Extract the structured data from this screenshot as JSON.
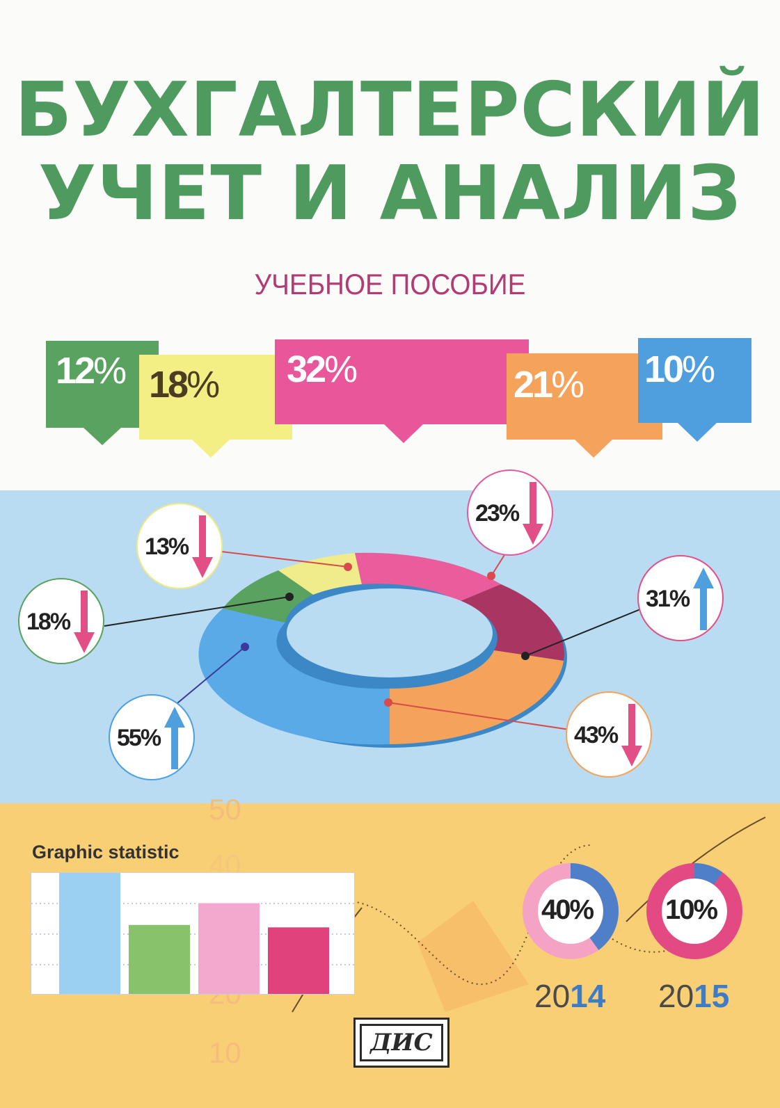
{
  "cover": {
    "title_line1": "БУХГАЛТЕРСКИЙ",
    "title_line2": "УЧЕТ И АНАЛИЗ",
    "subtitle": "УЧЕБНОЕ ПОСОБИЕ",
    "colors": {
      "title": "#4f9a5e",
      "subtitle": "#b23b74",
      "green": "#5aa25f",
      "yellow": "#f4ef84",
      "pink": "#e9569a",
      "orange": "#f5a25a",
      "blue": "#4f9fde",
      "maroon": "#a83562"
    }
  },
  "flags": [
    {
      "num": "12",
      "pct": "%",
      "color": "#5aa25f",
      "text_color": "#ffffff"
    },
    {
      "num": "18",
      "pct": "%",
      "color": "#f4ef84",
      "text_color": "#4b3c22"
    },
    {
      "num": "32",
      "pct": "%",
      "color": "#e9569a",
      "text_color": "#ffffff"
    },
    {
      "num": "21",
      "pct": "%",
      "color": "#f5a25a",
      "text_color": "#ffffff"
    },
    {
      "num": "10",
      "pct": "%",
      "color": "#4f9fde",
      "text_color": "#ffffff"
    }
  ],
  "donut": {
    "callouts": [
      {
        "label": "13%",
        "trend": "down",
        "ring_color": "#f0ea86",
        "arrow_color": "#e24f86"
      },
      {
        "label": "18%",
        "trend": "down",
        "ring_color": "#5aa25f",
        "arrow_color": "#e24f86"
      },
      {
        "label": "55%",
        "trend": "up",
        "ring_color": "#4f9fde",
        "arrow_color": "#4f9fde"
      },
      {
        "label": "23%",
        "trend": "down",
        "ring_color": "#e9569a",
        "arrow_color": "#e24f86"
      },
      {
        "label": "31%",
        "trend": "up",
        "ring_color": "#e24f86",
        "arrow_color": "#4f9fde"
      },
      {
        "label": "43%",
        "trend": "down",
        "ring_color": "#f5a25a",
        "arrow_color": "#e24f86"
      }
    ]
  },
  "statistic": {
    "heading": "Graphic statistic",
    "bars": [
      {
        "color": "#9cd0f2",
        "value": 1.0
      },
      {
        "color": "#86c36b",
        "value": 0.57
      },
      {
        "color": "#f3a8cd",
        "value": 0.75
      },
      {
        "color": "#e0427c",
        "value": 0.55
      }
    ],
    "background_numbers": [
      "50",
      "40",
      "20",
      "10"
    ]
  },
  "rings": [
    {
      "label": "40%",
      "year_prefix": "20",
      "year_suffix": "14",
      "share": 0.4,
      "color": "#4f7fc8",
      "track": "#f4a3c4"
    },
    {
      "label": "10%",
      "year_prefix": "20",
      "year_suffix": "15",
      "share": 0.1,
      "color": "#4f7fc8",
      "track": "#e34a83"
    }
  ],
  "publisher": {
    "logo_text": "ДИС"
  }
}
